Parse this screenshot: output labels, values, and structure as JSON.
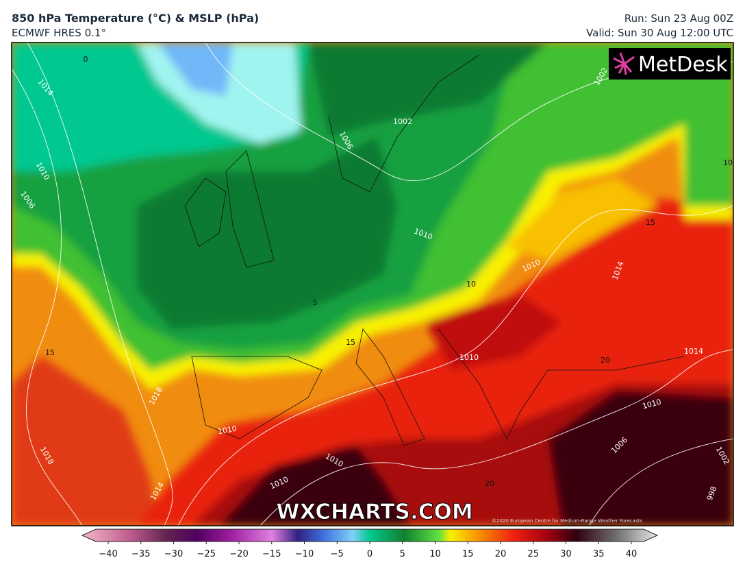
{
  "header": {
    "title": "850 hPa Temperature (°C) & MSLP (hPa)",
    "subtitle": "ECMWF HRES 0.1°",
    "run": "Run: Sun 23 Aug 00Z",
    "valid": "Valid: Sun 30 Aug 12:00 UTC"
  },
  "logo": "MetDesk",
  "watermark": "WXCHARTS.COM",
  "copyright": "©2020 European Centre for Medium-Range Weather Forecasts",
  "map_labels": [
    "0",
    "1014",
    "1010",
    "1006",
    "1002",
    "1006",
    "1010",
    "10",
    "5",
    "15",
    "15",
    "1010",
    "1014",
    "1010",
    "20",
    "1014",
    "1010",
    "1006",
    "1018",
    "1010",
    "1018",
    "1014",
    "1010",
    "1010",
    "20",
    "998",
    "1002",
    "1002",
    "10",
    "15"
  ],
  "colorbar": {
    "ticks": [
      {
        "value": -40,
        "label": "−40"
      },
      {
        "value": -35,
        "label": "−35"
      },
      {
        "value": -30,
        "label": "−30"
      },
      {
        "value": -25,
        "label": "−25"
      },
      {
        "value": -20,
        "label": "−20"
      },
      {
        "value": -15,
        "label": "−15"
      },
      {
        "value": -10,
        "label": "−10"
      },
      {
        "value": -5,
        "label": "−5"
      },
      0,
      5,
      10,
      15,
      20,
      25,
      30,
      35,
      40
    ]
  }
}
